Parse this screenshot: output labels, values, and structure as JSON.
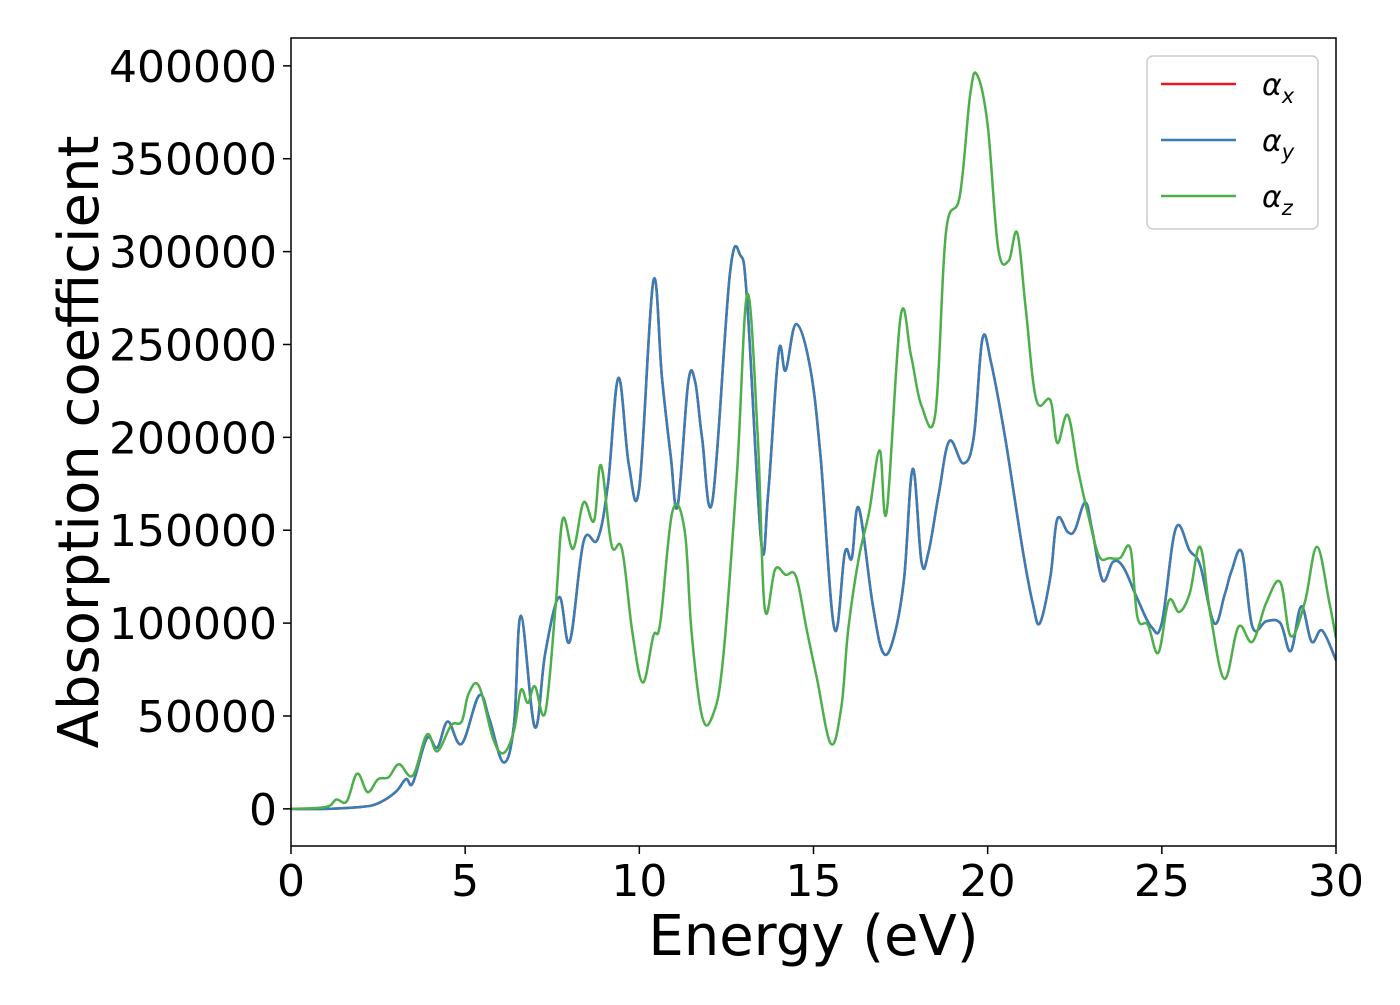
{
  "chart_data": {
    "type": "line",
    "title": "",
    "xlabel": "Energy (eV)",
    "ylabel": "Absorption coefficient",
    "xlim": [
      0,
      30
    ],
    "ylim": [
      -20000,
      415000
    ],
    "xticks": [
      0,
      5,
      10,
      15,
      20,
      25,
      30
    ],
    "yticks": [
      0,
      50000,
      100000,
      150000,
      200000,
      250000,
      300000,
      350000,
      400000
    ],
    "grid": false,
    "legend_position": "top-right",
    "series": [
      {
        "name": "α_x",
        "label_base": "α",
        "label_sub": "x",
        "color": "#e41a1c",
        "same_as": "α_y"
      },
      {
        "name": "α_y",
        "label_base": "α",
        "label_sub": "y",
        "color": "#377eb8",
        "points": [
          [
            0,
            0
          ],
          [
            1.0,
            0
          ],
          [
            2.0,
            1000
          ],
          [
            2.5,
            3000
          ],
          [
            3.0,
            9000
          ],
          [
            3.3,
            16000
          ],
          [
            3.5,
            14000
          ],
          [
            3.9,
            38000
          ],
          [
            4.2,
            33000
          ],
          [
            4.5,
            47000
          ],
          [
            4.9,
            35000
          ],
          [
            5.4,
            61000
          ],
          [
            5.7,
            48000
          ],
          [
            6.1,
            25000
          ],
          [
            6.4,
            45000
          ],
          [
            6.6,
            104000
          ],
          [
            7.0,
            44000
          ],
          [
            7.3,
            84000
          ],
          [
            7.7,
            114000
          ],
          [
            8.0,
            90000
          ],
          [
            8.4,
            144000
          ],
          [
            8.8,
            145000
          ],
          [
            9.1,
            175000
          ],
          [
            9.4,
            232000
          ],
          [
            9.7,
            185000
          ],
          [
            10.0,
            173000
          ],
          [
            10.4,
            284000
          ],
          [
            10.65,
            232000
          ],
          [
            10.9,
            190000
          ],
          [
            11.1,
            163000
          ],
          [
            11.4,
            229000
          ],
          [
            11.6,
            230000
          ],
          [
            11.8,
            200000
          ],
          [
            12.1,
            166000
          ],
          [
            12.6,
            288000
          ],
          [
            12.9,
            298000
          ],
          [
            13.1,
            272000
          ],
          [
            13.5,
            143000
          ],
          [
            13.7,
            170000
          ],
          [
            14.0,
            246000
          ],
          [
            14.2,
            236000
          ],
          [
            14.5,
            261000
          ],
          [
            14.9,
            238000
          ],
          [
            15.2,
            190000
          ],
          [
            15.6,
            97000
          ],
          [
            15.9,
            138000
          ],
          [
            16.1,
            135000
          ],
          [
            16.3,
            162000
          ],
          [
            16.7,
            110000
          ],
          [
            17.0,
            84000
          ],
          [
            17.3,
            92000
          ],
          [
            17.6,
            124000
          ],
          [
            17.85,
            183000
          ],
          [
            18.1,
            133000
          ],
          [
            18.3,
            138000
          ],
          [
            18.6,
            170000
          ],
          [
            18.9,
            198000
          ],
          [
            19.3,
            186000
          ],
          [
            19.6,
            200000
          ],
          [
            19.85,
            253000
          ],
          [
            20.1,
            240000
          ],
          [
            20.5,
            200000
          ],
          [
            21.0,
            140000
          ],
          [
            21.3,
            110000
          ],
          [
            21.5,
            100000
          ],
          [
            21.8,
            125000
          ],
          [
            22.0,
            156000
          ],
          [
            22.3,
            149000
          ],
          [
            22.5,
            150000
          ],
          [
            22.8,
            165000
          ],
          [
            23.0,
            150000
          ],
          [
            23.3,
            123000
          ],
          [
            23.6,
            133000
          ],
          [
            23.9,
            130000
          ],
          [
            24.3,
            113000
          ],
          [
            24.7,
            98000
          ],
          [
            25.0,
            100000
          ],
          [
            25.4,
            151000
          ],
          [
            25.8,
            139000
          ],
          [
            26.1,
            131000
          ],
          [
            26.5,
            100000
          ],
          [
            26.8,
            115000
          ],
          [
            27.0,
            128000
          ],
          [
            27.3,
            138000
          ],
          [
            27.6,
            98000
          ],
          [
            28.0,
            101000
          ],
          [
            28.4,
            100000
          ],
          [
            28.7,
            85000
          ],
          [
            29.0,
            109000
          ],
          [
            29.3,
            90000
          ],
          [
            29.6,
            96000
          ],
          [
            30.0,
            80000
          ]
        ]
      },
      {
        "name": "α_z",
        "label_base": "α",
        "label_sub": "z",
        "color": "#4daf4a",
        "points": [
          [
            0,
            0
          ],
          [
            1.0,
            1000
          ],
          [
            1.3,
            5000
          ],
          [
            1.6,
            4000
          ],
          [
            1.9,
            19000
          ],
          [
            2.2,
            9000
          ],
          [
            2.5,
            16000
          ],
          [
            2.8,
            17000
          ],
          [
            3.1,
            24000
          ],
          [
            3.5,
            18000
          ],
          [
            3.9,
            40000
          ],
          [
            4.2,
            31000
          ],
          [
            4.6,
            45000
          ],
          [
            4.9,
            47000
          ],
          [
            5.1,
            62000
          ],
          [
            5.4,
            66000
          ],
          [
            5.8,
            38000
          ],
          [
            6.1,
            30000
          ],
          [
            6.4,
            42000
          ],
          [
            6.6,
            64000
          ],
          [
            6.8,
            57000
          ],
          [
            7.0,
            66000
          ],
          [
            7.3,
            52000
          ],
          [
            7.6,
            110000
          ],
          [
            7.8,
            156000
          ],
          [
            8.1,
            140000
          ],
          [
            8.4,
            165000
          ],
          [
            8.7,
            155000
          ],
          [
            8.9,
            185000
          ],
          [
            9.2,
            142000
          ],
          [
            9.5,
            140000
          ],
          [
            9.8,
            95000
          ],
          [
            10.1,
            68000
          ],
          [
            10.4,
            93000
          ],
          [
            10.6,
            100000
          ],
          [
            10.95,
            160000
          ],
          [
            11.3,
            150000
          ],
          [
            11.5,
            95000
          ],
          [
            11.8,
            50000
          ],
          [
            12.1,
            50000
          ],
          [
            12.4,
            80000
          ],
          [
            12.8,
            180000
          ],
          [
            13.1,
            277000
          ],
          [
            13.4,
            200000
          ],
          [
            13.6,
            108000
          ],
          [
            13.9,
            129000
          ],
          [
            14.2,
            126000
          ],
          [
            14.5,
            125000
          ],
          [
            14.8,
            97000
          ],
          [
            15.1,
            70000
          ],
          [
            15.5,
            35000
          ],
          [
            15.8,
            55000
          ],
          [
            16.0,
            97000
          ],
          [
            16.3,
            135000
          ],
          [
            16.6,
            160000
          ],
          [
            16.9,
            193000
          ],
          [
            17.1,
            160000
          ],
          [
            17.5,
            265000
          ],
          [
            17.8,
            244000
          ],
          [
            18.1,
            217000
          ],
          [
            18.5,
            213000
          ],
          [
            18.8,
            310000
          ],
          [
            19.2,
            330000
          ],
          [
            19.5,
            385000
          ],
          [
            19.7,
            395000
          ],
          [
            20.0,
            368000
          ],
          [
            20.3,
            302000
          ],
          [
            20.6,
            295000
          ],
          [
            20.85,
            310000
          ],
          [
            21.1,
            268000
          ],
          [
            21.4,
            220000
          ],
          [
            21.8,
            220000
          ],
          [
            22.0,
            197000
          ],
          [
            22.3,
            212000
          ],
          [
            22.6,
            182000
          ],
          [
            22.9,
            157000
          ],
          [
            23.2,
            136000
          ],
          [
            23.5,
            135000
          ],
          [
            23.8,
            135000
          ],
          [
            24.1,
            140000
          ],
          [
            24.3,
            103000
          ],
          [
            24.6,
            99000
          ],
          [
            24.9,
            84000
          ],
          [
            25.2,
            112000
          ],
          [
            25.5,
            106000
          ],
          [
            25.8,
            116000
          ],
          [
            26.1,
            141000
          ],
          [
            26.4,
            104000
          ],
          [
            26.8,
            70000
          ],
          [
            27.2,
            98000
          ],
          [
            27.6,
            90000
          ],
          [
            28.0,
            111000
          ],
          [
            28.4,
            122000
          ],
          [
            28.7,
            93000
          ],
          [
            29.1,
            111000
          ],
          [
            29.45,
            141000
          ],
          [
            29.8,
            112000
          ],
          [
            30.0,
            92000
          ]
        ]
      }
    ]
  }
}
